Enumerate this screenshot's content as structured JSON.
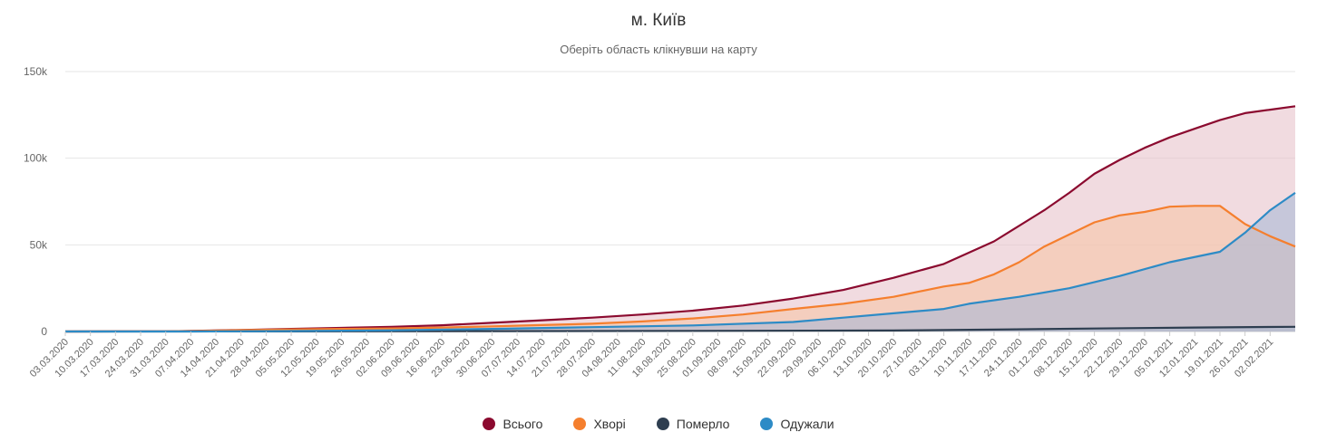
{
  "chart_data": {
    "type": "area",
    "title": "м. Київ",
    "subtitle": "Оберіть область клікнувши на карту",
    "xlabel": "",
    "ylabel": "",
    "ylim": [
      0,
      150000
    ],
    "y_ticks": [
      {
        "value": 0,
        "label": "0"
      },
      {
        "value": 50000,
        "label": "50k"
      },
      {
        "value": 100000,
        "label": "100k"
      },
      {
        "value": 150000,
        "label": "150k"
      }
    ],
    "x_start": "03.03.2020",
    "x_end": "09.02.2021",
    "x_tick_labels": [
      "03.03.2020",
      "10.03.2020",
      "17.03.2020",
      "24.03.2020",
      "31.03.2020",
      "07.04.2020",
      "14.04.2020",
      "21.04.2020",
      "28.04.2020",
      "05.05.2020",
      "12.05.2020",
      "19.05.2020",
      "26.05.2020",
      "02.06.2020",
      "09.06.2020",
      "16.06.2020",
      "23.06.2020",
      "30.06.2020",
      "07.07.2020",
      "14.07.2020",
      "21.07.2020",
      "28.07.2020",
      "04.08.2020",
      "11.08.2020",
      "18.08.2020",
      "25.08.2020",
      "01.09.2020",
      "08.09.2020",
      "15.09.2020",
      "22.09.2020",
      "29.09.2020",
      "06.10.2020",
      "13.10.2020",
      "20.10.2020",
      "27.10.2020",
      "03.11.2020",
      "10.11.2020",
      "17.11.2020",
      "24.11.2020",
      "01.12.2020",
      "08.12.2020",
      "15.12.2020",
      "22.12.2020",
      "29.12.2020",
      "05.01.2021",
      "12.01.2021",
      "19.01.2021",
      "26.01.2021",
      "02.02.2021"
    ],
    "grid": true,
    "legend_position": "bottom",
    "series": [
      {
        "name": "Всього",
        "color": "#8b0a2f",
        "fill": "#e8c3cc",
        "points": [
          [
            "03.03.2020",
            0
          ],
          [
            "31.03.2020",
            100
          ],
          [
            "07.04.2020",
            300
          ],
          [
            "21.04.2020",
            900
          ],
          [
            "05.05.2020",
            1500
          ],
          [
            "19.05.2020",
            2100
          ],
          [
            "02.06.2020",
            2700
          ],
          [
            "16.06.2020",
            3600
          ],
          [
            "30.06.2020",
            5000
          ],
          [
            "14.07.2020",
            6500
          ],
          [
            "28.07.2020",
            8000
          ],
          [
            "11.08.2020",
            9800
          ],
          [
            "25.08.2020",
            12000
          ],
          [
            "08.09.2020",
            15000
          ],
          [
            "22.09.2020",
            19000
          ],
          [
            "06.10.2020",
            24000
          ],
          [
            "20.10.2020",
            31000
          ],
          [
            "03.11.2020",
            39000
          ],
          [
            "17.11.2020",
            52000
          ],
          [
            "01.12.2020",
            70000
          ],
          [
            "08.12.2020",
            80000
          ],
          [
            "15.12.2020",
            91000
          ],
          [
            "22.12.2020",
            99000
          ],
          [
            "29.12.2020",
            106000
          ],
          [
            "05.01.2021",
            112000
          ],
          [
            "12.01.2021",
            117000
          ],
          [
            "19.01.2021",
            122000
          ],
          [
            "26.01.2021",
            126000
          ],
          [
            "02.02.2021",
            128000
          ],
          [
            "09.02.2021",
            130000
          ]
        ]
      },
      {
        "name": "Хворі",
        "color": "#f57f2e",
        "fill": "#f6c4a7",
        "points": [
          [
            "03.03.2020",
            0
          ],
          [
            "31.03.2020",
            90
          ],
          [
            "07.04.2020",
            280
          ],
          [
            "21.04.2020",
            800
          ],
          [
            "05.05.2020",
            1200
          ],
          [
            "19.05.2020",
            1500
          ],
          [
            "02.06.2020",
            1800
          ],
          [
            "16.06.2020",
            2300
          ],
          [
            "30.06.2020",
            3000
          ],
          [
            "14.07.2020",
            3700
          ],
          [
            "28.07.2020",
            4500
          ],
          [
            "11.08.2020",
            5800
          ],
          [
            "25.08.2020",
            7500
          ],
          [
            "08.09.2020",
            9800
          ],
          [
            "22.09.2020",
            13000
          ],
          [
            "06.10.2020",
            16000
          ],
          [
            "20.10.2020",
            20000
          ],
          [
            "03.11.2020",
            26000
          ],
          [
            "10.11.2020",
            28000
          ],
          [
            "17.11.2020",
            33000
          ],
          [
            "24.11.2020",
            40000
          ],
          [
            "01.12.2020",
            49000
          ],
          [
            "08.12.2020",
            56000
          ],
          [
            "15.12.2020",
            63000
          ],
          [
            "22.12.2020",
            67000
          ],
          [
            "29.12.2020",
            69000
          ],
          [
            "05.01.2021",
            72000
          ],
          [
            "12.01.2021",
            72500
          ],
          [
            "19.01.2021",
            72500
          ],
          [
            "26.01.2021",
            62000
          ],
          [
            "02.02.2021",
            55000
          ],
          [
            "09.02.2021",
            49000
          ]
        ]
      },
      {
        "name": "Померло",
        "color": "#2e3e50",
        "fill": "#b8bcc4",
        "points": [
          [
            "03.03.2020",
            0
          ],
          [
            "05.05.2020",
            50
          ],
          [
            "30.06.2020",
            200
          ],
          [
            "25.08.2020",
            350
          ],
          [
            "20.10.2020",
            600
          ],
          [
            "17.11.2020",
            1100
          ],
          [
            "15.12.2020",
            1700
          ],
          [
            "12.01.2021",
            2300
          ],
          [
            "09.02.2021",
            2700
          ]
        ]
      },
      {
        "name": "Одужали",
        "color": "#2d8bc6",
        "fill": "#aab9d6",
        "points": [
          [
            "03.03.2020",
            0
          ],
          [
            "07.04.2020",
            20
          ],
          [
            "05.05.2020",
            250
          ],
          [
            "02.06.2020",
            700
          ],
          [
            "30.06.2020",
            1500
          ],
          [
            "28.07.2020",
            2500
          ],
          [
            "25.08.2020",
            3500
          ],
          [
            "22.09.2020",
            5500
          ],
          [
            "06.10.2020",
            8000
          ],
          [
            "20.10.2020",
            10500
          ],
          [
            "03.11.2020",
            13000
          ],
          [
            "10.11.2020",
            16000
          ],
          [
            "24.11.2020",
            20000
          ],
          [
            "08.12.2020",
            25000
          ],
          [
            "22.12.2020",
            32000
          ],
          [
            "05.01.2021",
            40000
          ],
          [
            "19.01.2021",
            46000
          ],
          [
            "26.01.2021",
            57000
          ],
          [
            "02.02.2021",
            70000
          ],
          [
            "09.02.2021",
            80000
          ]
        ]
      }
    ]
  }
}
